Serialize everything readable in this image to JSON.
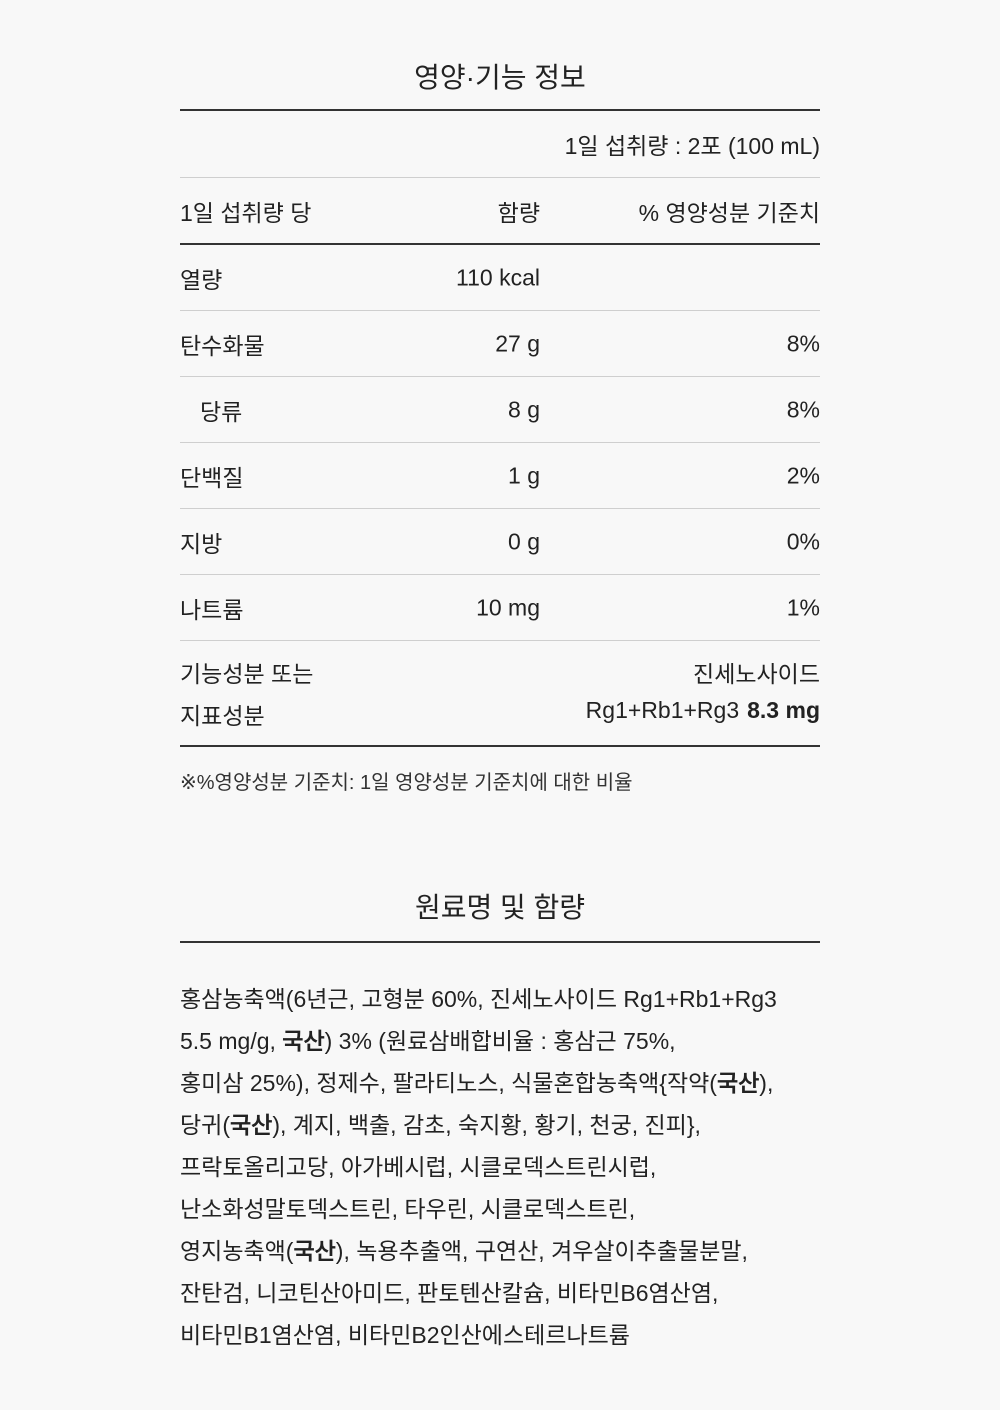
{
  "nutrition": {
    "title": "영양·기능 정보",
    "serving": "1일 섭취량 : 2포 (100 mL)",
    "headers": {
      "label": "1일 섭취량 당",
      "amount": "함량",
      "percent": "% 영양성분 기준치"
    },
    "rows": [
      {
        "label": "열량",
        "amount": "110 kcal",
        "percent": ""
      },
      {
        "label": "탄수화물",
        "amount": "27 g",
        "percent": "8%"
      },
      {
        "label": "당류",
        "amount": "8 g",
        "percent": "8%"
      },
      {
        "label": "단백질",
        "amount": "1 g",
        "percent": "2%"
      },
      {
        "label": "지방",
        "amount": "0 g",
        "percent": "0%"
      },
      {
        "label": "나트륨",
        "amount": "10 mg",
        "percent": "1%"
      }
    ],
    "functional": {
      "label_line1": "기능성분 또는",
      "label_line2": "지표성분",
      "name": "진세노사이드",
      "compound": "Rg1+Rb1+Rg3",
      "value": "8.3 mg"
    },
    "note": "※%영양성분 기준치: 1일 영양성분 기준치에 대한 비율"
  },
  "ingredients": {
    "title": "원료명 및 함량",
    "lines": [
      [
        {
          "t": "홍삼농축액(6년근, 고형분 60%, 진세노사이드 Rg1+Rb1+Rg3"
        }
      ],
      [
        {
          "t": "5.5 mg/g, "
        },
        {
          "t": "국산",
          "b": true
        },
        {
          "t": ") 3% (원료삼배합비율 : 홍삼근 75%,"
        }
      ],
      [
        {
          "t": "홍미삼 25%), 정제수, 팔라티노스, 식물혼합농축액{작약("
        },
        {
          "t": "국산",
          "b": true
        },
        {
          "t": "),"
        }
      ],
      [
        {
          "t": "당귀("
        },
        {
          "t": "국산",
          "b": true
        },
        {
          "t": "), 계지, 백출, 감초, 숙지황, 황기, 천궁, 진피},"
        }
      ],
      [
        {
          "t": "프락토올리고당, 아가베시럽, 시클로덱스트린시럽,"
        }
      ],
      [
        {
          "t": "난소화성말토덱스트린, 타우린, 시클로덱스트린,"
        }
      ],
      [
        {
          "t": "영지농축액("
        },
        {
          "t": "국산",
          "b": true
        },
        {
          "t": "), 녹용추출액, 구연산, 겨우살이추출물분말,"
        }
      ],
      [
        {
          "t": "잔탄검, 니코틴산아미드, 판토텐산칼슘, 비타민B6염산염,"
        }
      ],
      [
        {
          "t": "비타민B1염산염, 비타민B2인산에스테르나트륨"
        }
      ]
    ]
  }
}
